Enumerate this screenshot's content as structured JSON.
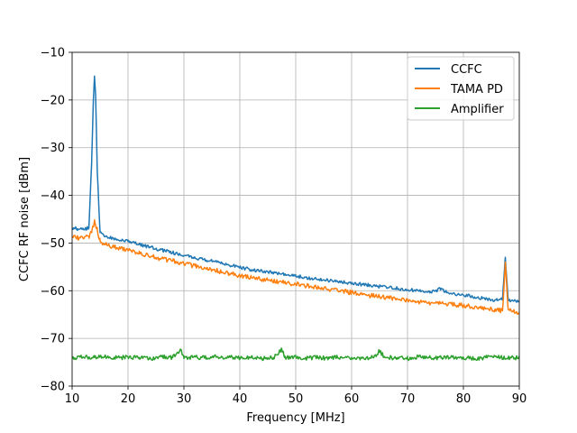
{
  "chart_data": {
    "type": "line",
    "title": "",
    "xlabel": "Frequency [MHz]",
    "ylabel": "CCFC RF noise [dBm]",
    "xlim": [
      10,
      90
    ],
    "ylim": [
      -80,
      -10
    ],
    "xticks": [
      10,
      20,
      30,
      40,
      50,
      60,
      70,
      80,
      90
    ],
    "yticks": [
      -80,
      -70,
      -60,
      -50,
      -40,
      -30,
      -20,
      -10
    ],
    "xtick_labels": [
      "10",
      "20",
      "30",
      "40",
      "50",
      "60",
      "70",
      "80",
      "90"
    ],
    "ytick_labels": [
      "−80",
      "−70",
      "−60",
      "−50",
      "−40",
      "−30",
      "−20",
      "−10"
    ],
    "grid": true,
    "legend_position": "top-right",
    "series": [
      {
        "name": "CCFC",
        "color": "#1f77b4",
        "x": [
          10,
          11,
          12,
          13,
          13.5,
          13.8,
          14.0,
          14.2,
          14.5,
          15,
          16,
          18,
          20,
          22,
          25,
          28,
          30,
          32,
          35,
          38,
          40,
          42,
          45,
          48,
          50,
          52,
          55,
          58,
          60,
          62,
          65,
          68,
          70,
          72,
          74,
          75,
          76,
          77,
          78,
          80,
          82,
          84,
          86,
          87,
          87.5,
          88,
          89,
          90
        ],
        "y": [
          -46.8,
          -47.0,
          -47.2,
          -46.8,
          -33,
          -20,
          -15,
          -19,
          -35,
          -47.8,
          -48.6,
          -49.2,
          -49.7,
          -50.3,
          -51.2,
          -52.0,
          -52.6,
          -53.1,
          -53.8,
          -54.6,
          -55.1,
          -55.6,
          -56.0,
          -56.6,
          -56.9,
          -57.3,
          -57.7,
          -58.1,
          -58.4,
          -58.7,
          -59.1,
          -59.5,
          -59.8,
          -60.0,
          -60.2,
          -60.1,
          -59.5,
          -60.4,
          -60.6,
          -60.9,
          -61.3,
          -61.7,
          -62.0,
          -61.8,
          -53,
          -61.8,
          -62.2,
          -62.3
        ]
      },
      {
        "name": "TAMA PD",
        "color": "#ff7f0e",
        "x": [
          10,
          11,
          12,
          13,
          13.5,
          14.0,
          14.5,
          15,
          16,
          18,
          20,
          22,
          25,
          28,
          30,
          32,
          35,
          38,
          40,
          42,
          45,
          48,
          50,
          52,
          55,
          58,
          60,
          62,
          65,
          68,
          70,
          72,
          75,
          78,
          80,
          82,
          84,
          86,
          87,
          87.5,
          88,
          89,
          90
        ],
        "y": [
          -48.8,
          -48.9,
          -49.1,
          -48.6,
          -47.8,
          -45.3,
          -47.2,
          -49.6,
          -50.3,
          -51.0,
          -51.6,
          -52.2,
          -53.0,
          -53.8,
          -54.3,
          -54.8,
          -55.6,
          -56.3,
          -56.8,
          -57.2,
          -57.8,
          -58.3,
          -58.6,
          -59.0,
          -59.5,
          -60.0,
          -60.4,
          -60.8,
          -61.3,
          -61.7,
          -62.0,
          -62.3,
          -62.6,
          -62.9,
          -63.1,
          -63.4,
          -63.7,
          -64.0,
          -64.2,
          -54,
          -63.9,
          -64.4,
          -64.6
        ]
      },
      {
        "name": "Amplifier",
        "color": "#2ca02c",
        "x": [
          10,
          12,
          14,
          16,
          18,
          20,
          22,
          24,
          26,
          28,
          29.5,
          30,
          32,
          34,
          36,
          38,
          40,
          42,
          44,
          46,
          47.5,
          48,
          50,
          52,
          54,
          56,
          58,
          60,
          62,
          64,
          65,
          66,
          68,
          70,
          72,
          74,
          76,
          78,
          80,
          82,
          84,
          86,
          88,
          90
        ],
        "y": [
          -74.2,
          -73.9,
          -74.0,
          -73.8,
          -74.1,
          -73.9,
          -74.0,
          -74.2,
          -73.8,
          -74.0,
          -72.4,
          -74.0,
          -73.9,
          -74.1,
          -73.8,
          -74.0,
          -74.1,
          -73.9,
          -74.2,
          -74.0,
          -72.2,
          -74.0,
          -73.9,
          -74.1,
          -74.0,
          -74.2,
          -73.9,
          -74.0,
          -74.1,
          -73.9,
          -72.6,
          -74.0,
          -74.1,
          -74.2,
          -73.9,
          -74.0,
          -74.1,
          -73.9,
          -74.0,
          -74.2,
          -74.0,
          -73.9,
          -74.1,
          -74.0
        ]
      }
    ]
  }
}
